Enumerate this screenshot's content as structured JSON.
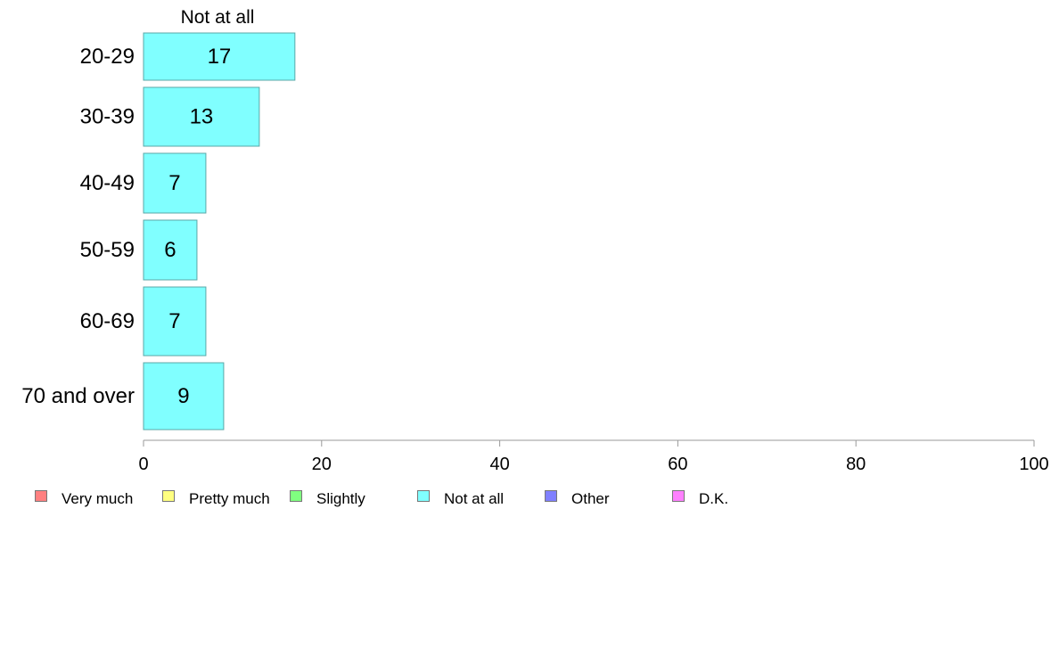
{
  "chart_data": {
    "type": "bar",
    "orientation": "horizontal",
    "column_header": "Not at all",
    "categories": [
      "20-29",
      "30-39",
      "40-49",
      "50-59",
      "60-69",
      "70 and over"
    ],
    "series": [
      {
        "name": "Not at all",
        "color": "#80ffff",
        "values": [
          17,
          13,
          7,
          6,
          7,
          9
        ],
        "labels": [
          "17",
          "13",
          "7",
          "6",
          "7",
          "9"
        ]
      }
    ],
    "xlim": [
      0,
      100
    ],
    "xticks": [
      0,
      20,
      40,
      60,
      80,
      100
    ],
    "grid": false,
    "legend_position": "bottom",
    "legend": [
      {
        "name": "Very much",
        "color": "#ff8080"
      },
      {
        "name": "Pretty much",
        "color": "#ffff80"
      },
      {
        "name": "Slightly",
        "color": "#80ff80"
      },
      {
        "name": "Not at all",
        "color": "#80ffff"
      },
      {
        "name": "Other",
        "color": "#8080ff"
      },
      {
        "name": "D.K.",
        "color": "#ff80ff"
      }
    ]
  }
}
